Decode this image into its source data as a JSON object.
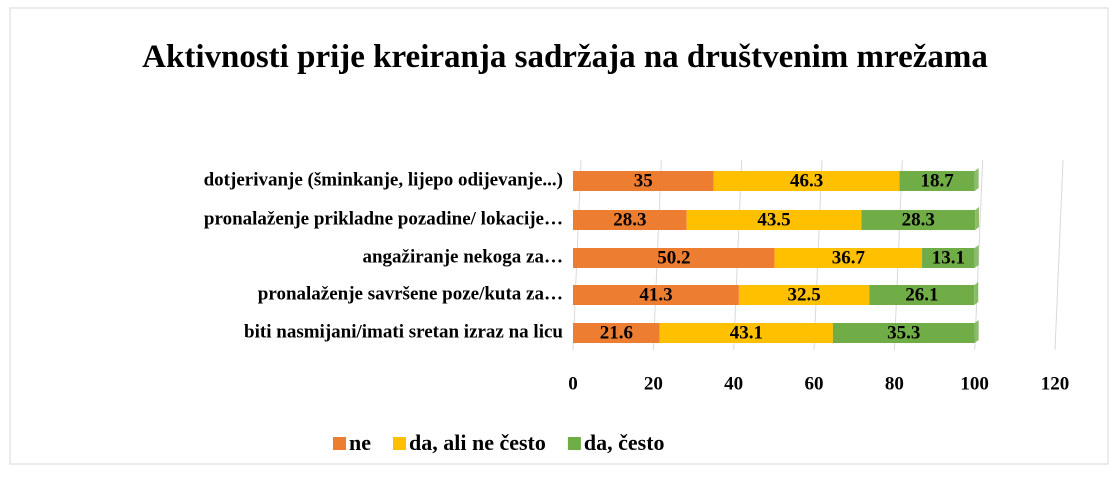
{
  "chart_data": {
    "type": "stacked_bar_horizontal",
    "title": "Aktivnosti prije kreiranja sadržaja na društvenim mrežama",
    "categories": [
      "dotjerivanje (šminkanje, lijepo odijevanje...)",
      "pronalaženje prikladne pozadine/ lokacije…",
      "angažiranje nekoga za…",
      "pronalaženje savršene poze/kuta za…",
      "biti nasmijani/imati sretan izraz na licu"
    ],
    "series": [
      {
        "name": "ne",
        "color": "#ed7d31",
        "values": [
          35,
          28.3,
          50.2,
          41.3,
          21.6
        ]
      },
      {
        "name": "da, ali ne često",
        "color": "#ffc000",
        "values": [
          46.3,
          43.5,
          36.7,
          32.5,
          43.1
        ]
      },
      {
        "name": "da, često",
        "color": "#70ad47",
        "values": [
          18.7,
          28.3,
          13.1,
          26.1,
          35.3
        ]
      }
    ],
    "xlim": [
      0,
      120
    ],
    "xticks": [
      0,
      20,
      40,
      60,
      80,
      100,
      120
    ],
    "grid": true,
    "legend": "bottom"
  }
}
